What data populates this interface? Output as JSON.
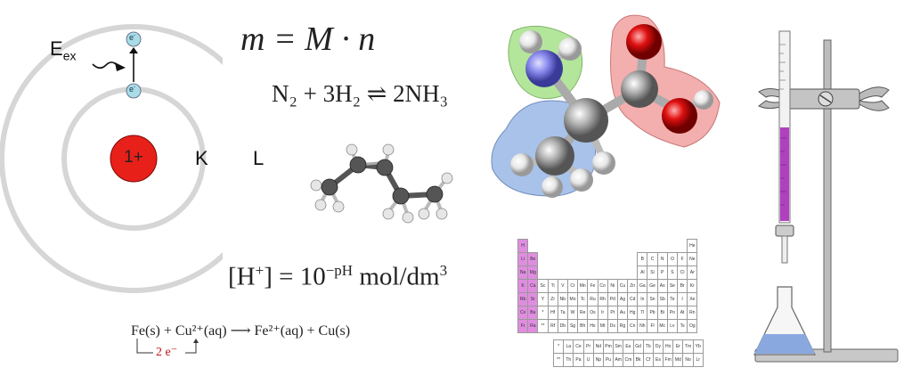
{
  "atom": {
    "nucleus_label": "1+",
    "shell_inner": "K",
    "shell_outer": "L",
    "energy_label": "E",
    "energy_sub": "ex",
    "electron_label": "e",
    "electron_charge": "-"
  },
  "formulas": {
    "mass": "m = M · n",
    "haber_left": "N",
    "haber_full": "N₂ + 3H₂ ⇌ 2NH₃",
    "ph_left": "[H",
    "ph_plus": "+",
    "ph_mid": "] = 10",
    "ph_exp": "−pH",
    "ph_unit": " mol/dm",
    "ph_cube": "3",
    "redox": "Fe(s) + Cu²⁺(aq) ⟶ Fe²⁺(aq) + Cu(s)",
    "redox_electrons": "2 e⁻"
  },
  "periodic_table": {
    "rows": [
      [
        "H",
        "",
        "",
        "",
        "",
        "",
        "",
        "",
        "",
        "",
        "",
        "",
        "",
        "",
        "",
        "",
        "",
        "He"
      ],
      [
        "Li",
        "Be",
        "",
        "",
        "",
        "",
        "",
        "",
        "",
        "",
        "",
        "",
        "B",
        "C",
        "N",
        "O",
        "F",
        "Ne"
      ],
      [
        "Na",
        "Mg",
        "",
        "",
        "",
        "",
        "",
        "",
        "",
        "",
        "",
        "",
        "Al",
        "Si",
        "P",
        "S",
        "Cl",
        "Ar"
      ],
      [
        "K",
        "Ca",
        "Sc",
        "Ti",
        "V",
        "Cr",
        "Mn",
        "Fe",
        "Co",
        "Ni",
        "Cu",
        "Zn",
        "Ga",
        "Ge",
        "As",
        "Se",
        "Br",
        "Kr"
      ],
      [
        "Rb",
        "Sr",
        "Y",
        "Zr",
        "Nb",
        "Mo",
        "Tc",
        "Ru",
        "Rh",
        "Pd",
        "Ag",
        "Cd",
        "In",
        "Sn",
        "Sb",
        "Te",
        "I",
        "Xe"
      ],
      [
        "Cs",
        "Ba",
        "*",
        "Hf",
        "Ta",
        "W",
        "Re",
        "Os",
        "Ir",
        "Pt",
        "Au",
        "Hg",
        "Tl",
        "Pb",
        "Bi",
        "Po",
        "At",
        "Rn"
      ],
      [
        "Fr",
        "Ra",
        "**",
        "Rf",
        "Db",
        "Sg",
        "Bh",
        "Hs",
        "Mt",
        "Ds",
        "Rg",
        "Cn",
        "Nh",
        "Fl",
        "Mc",
        "Lv",
        "Ts",
        "Og"
      ]
    ],
    "f_rows": [
      [
        "*",
        "La",
        "Ce",
        "Pr",
        "Nd",
        "Pm",
        "Sm",
        "Eu",
        "Gd",
        "Tb",
        "Dy",
        "Ho",
        "Er",
        "Tm",
        "Yb"
      ],
      [
        "**",
        "Th",
        "Pa",
        "U",
        "Np",
        "Pu",
        "Am",
        "Cm",
        "Bk",
        "Cf",
        "Es",
        "Fm",
        "Md",
        "No",
        "Lr"
      ]
    ],
    "s_block_color": "#e08de0"
  },
  "colors": {
    "nucleus": "#e8201a",
    "electron": "#a8dde8",
    "nitrogen": "#8a8aee",
    "oxygen": "#e01010",
    "carbon": "#8f8f8f",
    "hydrogen": "#e6e6e6",
    "amine_highlight": "#a6e28a",
    "acid_highlight": "#f2a0a0",
    "methyl_highlight": "#9ab8e6",
    "titrant": "#b040c0",
    "flask_liquid": "#8aa8e0"
  }
}
